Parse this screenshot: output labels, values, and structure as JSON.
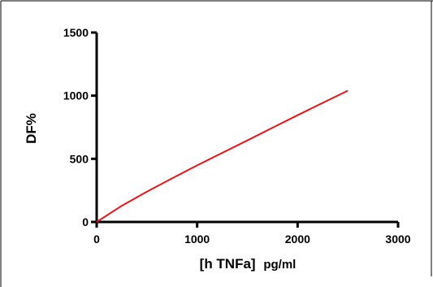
{
  "chart_data": {
    "type": "line",
    "title": "",
    "xlabel": "[h TNFa] pg/ml",
    "xlabel_main": "[h TNFa]",
    "xlabel_unit": "pg/ml",
    "ylabel": "DF%",
    "xlim": [
      0,
      3000
    ],
    "ylim": [
      0,
      1500
    ],
    "x_ticks": [
      0,
      1000,
      2000,
      3000
    ],
    "y_ticks": [
      0,
      500,
      1000,
      1500
    ],
    "grid": false,
    "legend": "none",
    "series": [
      {
        "color": "#e8141b",
        "x": [
          0,
          250,
          500,
          750,
          1000,
          1250,
          1500,
          1750,
          2000,
          2250,
          2500
        ],
        "y": [
          0,
          128,
          240,
          345,
          448,
          547,
          646,
          746,
          845,
          943,
          1040
        ]
      }
    ]
  }
}
